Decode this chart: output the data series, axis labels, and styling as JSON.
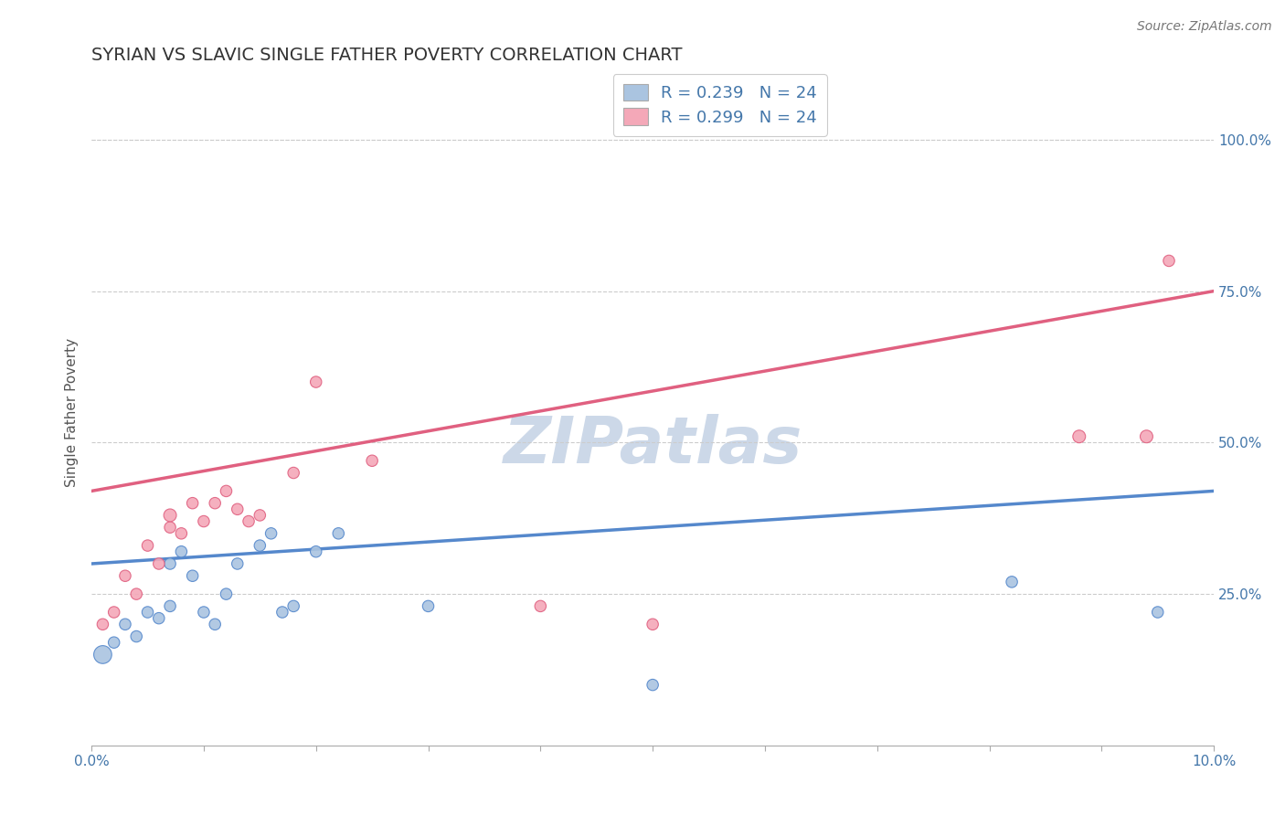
{
  "title": "SYRIAN VS SLAVIC SINGLE FATHER POVERTY CORRELATION CHART",
  "source": "Source: ZipAtlas.com",
  "xlabel": "",
  "ylabel": "Single Father Poverty",
  "xlim": [
    0.0,
    0.1
  ],
  "ylim": [
    0.0,
    1.1
  ],
  "yticks": [
    0.25,
    0.5,
    0.75,
    1.0
  ],
  "ytick_labels": [
    "25.0%",
    "50.0%",
    "75.0%",
    "100.0%"
  ],
  "syrians_R": 0.239,
  "syrians_N": 24,
  "slavs_R": 0.299,
  "slavs_N": 24,
  "syrians_color": "#aac4e0",
  "slavs_color": "#f4a8b8",
  "syrians_line_color": "#5588cc",
  "slavs_line_color": "#e06080",
  "watermark": "ZIPatlas",
  "watermark_color": "#ccd8e8",
  "syrians_x": [
    0.001,
    0.002,
    0.003,
    0.004,
    0.005,
    0.006,
    0.007,
    0.007,
    0.008,
    0.009,
    0.01,
    0.011,
    0.012,
    0.013,
    0.015,
    0.016,
    0.017,
    0.018,
    0.02,
    0.022,
    0.03,
    0.05,
    0.082,
    0.095
  ],
  "syrians_y": [
    0.15,
    0.17,
    0.2,
    0.18,
    0.22,
    0.21,
    0.23,
    0.3,
    0.32,
    0.28,
    0.22,
    0.2,
    0.25,
    0.3,
    0.33,
    0.35,
    0.22,
    0.23,
    0.32,
    0.35,
    0.23,
    0.1,
    0.27,
    0.22
  ],
  "syrians_sizes": [
    200,
    80,
    80,
    80,
    80,
    80,
    80,
    80,
    80,
    80,
    80,
    80,
    80,
    80,
    80,
    80,
    80,
    80,
    80,
    80,
    80,
    80,
    80,
    80
  ],
  "slavs_x": [
    0.001,
    0.002,
    0.003,
    0.004,
    0.005,
    0.006,
    0.007,
    0.007,
    0.008,
    0.009,
    0.01,
    0.011,
    0.012,
    0.013,
    0.014,
    0.015,
    0.018,
    0.02,
    0.025,
    0.04,
    0.05,
    0.088,
    0.094,
    0.096
  ],
  "slavs_y": [
    0.2,
    0.22,
    0.28,
    0.25,
    0.33,
    0.3,
    0.36,
    0.38,
    0.35,
    0.4,
    0.37,
    0.4,
    0.42,
    0.39,
    0.37,
    0.38,
    0.45,
    0.6,
    0.47,
    0.23,
    0.2,
    0.51,
    0.51,
    0.8
  ],
  "slavs_sizes": [
    80,
    80,
    80,
    80,
    80,
    80,
    80,
    100,
    80,
    80,
    80,
    80,
    80,
    80,
    80,
    80,
    80,
    80,
    80,
    80,
    80,
    100,
    100,
    80
  ],
  "syrians_trend": [
    0.3,
    0.42
  ],
  "slavs_trend": [
    0.42,
    0.75
  ]
}
